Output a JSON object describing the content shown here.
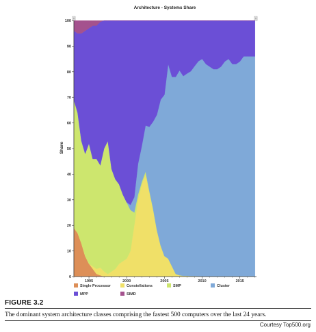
{
  "chart_data": {
    "type": "area",
    "title": "Architecture - Systems Share",
    "xlabel": "",
    "ylabel": "Share",
    "ylim": [
      0,
      100
    ],
    "xlim": [
      1993,
      2017.2
    ],
    "yticks": [
      0,
      10,
      20,
      30,
      40,
      50,
      60,
      70,
      80,
      90,
      100
    ],
    "xticks": [
      1995,
      2000,
      2005,
      2010,
      2015
    ],
    "grid": false,
    "legend": "bottom",
    "stacked": true,
    "x": [
      1993,
      1993.5,
      1994,
      1994.5,
      1995,
      1995.5,
      1996,
      1996.5,
      1997,
      1997.5,
      1998,
      1998.5,
      1999,
      1999.5,
      2000,
      2000.5,
      2001,
      2001.5,
      2002,
      2002.5,
      2003,
      2003.5,
      2004,
      2004.5,
      2005,
      2005.5,
      2006,
      2006.5,
      2007,
      2007.5,
      2008,
      2008.5,
      2009,
      2009.5,
      2010,
      2010.5,
      2011,
      2011.5,
      2012,
      2012.5,
      2013,
      2013.5,
      2014,
      2014.5,
      2015,
      2015.5,
      2016,
      2016.5,
      2017
    ],
    "series": [
      {
        "name": "Single Processor",
        "color": "#dd8f58",
        "values": [
          19,
          17,
          13,
          8,
          5,
          3,
          1,
          0.5,
          0,
          0,
          0,
          0,
          0,
          0,
          0,
          0,
          0,
          0,
          0,
          0,
          0,
          0,
          0,
          0,
          0,
          0,
          0,
          0,
          0,
          0,
          0,
          0,
          0,
          0,
          0,
          0,
          0,
          0,
          0,
          0,
          0,
          0,
          0,
          0,
          0,
          0,
          0,
          0,
          0
        ]
      },
      {
        "name": "Constellations",
        "color": "#f0e068",
        "values": [
          0,
          0,
          0,
          0,
          0,
          1,
          2,
          3,
          2,
          1,
          2,
          3,
          5,
          6,
          7,
          10,
          20,
          30,
          36,
          40,
          33,
          26,
          18,
          12,
          8,
          7,
          4,
          1,
          0.5,
          0.3,
          0.3,
          0.2,
          0.2,
          0.1,
          0,
          0,
          0,
          0,
          0,
          0,
          0,
          0,
          0,
          0,
          0,
          0,
          0,
          0,
          0
        ]
      },
      {
        "name": "SMP",
        "color": "#cde66e",
        "values": [
          50,
          47,
          40,
          40,
          47,
          42,
          43,
          40,
          48,
          52,
          40,
          35,
          31,
          26,
          22,
          16,
          5,
          2,
          1,
          1,
          0.5,
          0.5,
          0.2,
          0.1,
          0,
          0,
          0,
          0,
          0,
          0,
          0,
          0,
          0,
          0,
          0,
          0,
          0,
          0,
          0,
          0,
          0,
          0,
          0,
          0,
          0,
          0,
          0,
          0,
          0
        ]
      },
      {
        "name": "Cluster",
        "color": "#7fa9d8",
        "values": [
          0,
          0,
          0,
          0,
          0,
          0,
          0,
          0,
          0,
          0,
          0,
          0,
          0,
          0,
          0,
          2,
          6,
          12,
          14,
          18,
          25,
          34,
          45,
          57,
          63,
          76,
          74,
          77,
          80,
          78,
          79,
          80,
          82,
          84,
          85,
          83,
          82,
          81,
          81,
          82,
          84,
          85,
          83,
          83,
          84,
          86,
          86,
          86,
          86
        ]
      },
      {
        "name": "MPP",
        "color": "#6b4fd6",
        "values": [
          27,
          31,
          42,
          48,
          45,
          52,
          52,
          56,
          50,
          47,
          58,
          62,
          64,
          68,
          71,
          72,
          69,
          56,
          49,
          41,
          41.5,
          39.5,
          36.8,
          30.9,
          29,
          17,
          22,
          22,
          19.5,
          21.7,
          20.7,
          19.8,
          17.8,
          15.9,
          15,
          17,
          18,
          19,
          19,
          18,
          16,
          15,
          17,
          17,
          16,
          14,
          14,
          14,
          14
        ]
      },
      {
        "name": "SIMD",
        "color": "#a4528e",
        "values": [
          4,
          5,
          5,
          4,
          3,
          2,
          2,
          0.5,
          0,
          0,
          0,
          0,
          0,
          0,
          0,
          0,
          0,
          0,
          0,
          0,
          0,
          0,
          0,
          0,
          0,
          0,
          0,
          0,
          0,
          0,
          0,
          0,
          0,
          0,
          0,
          0,
          0,
          0,
          0,
          0,
          0,
          0,
          0,
          0,
          0,
          0,
          0,
          0,
          0
        ]
      }
    ]
  },
  "figure_label": "FIGURE 3.2",
  "caption": "The dominant system architecture classes comprising the fastest 500 computers over the last 24 years.",
  "courtesy": "Courtesy Top500.org"
}
